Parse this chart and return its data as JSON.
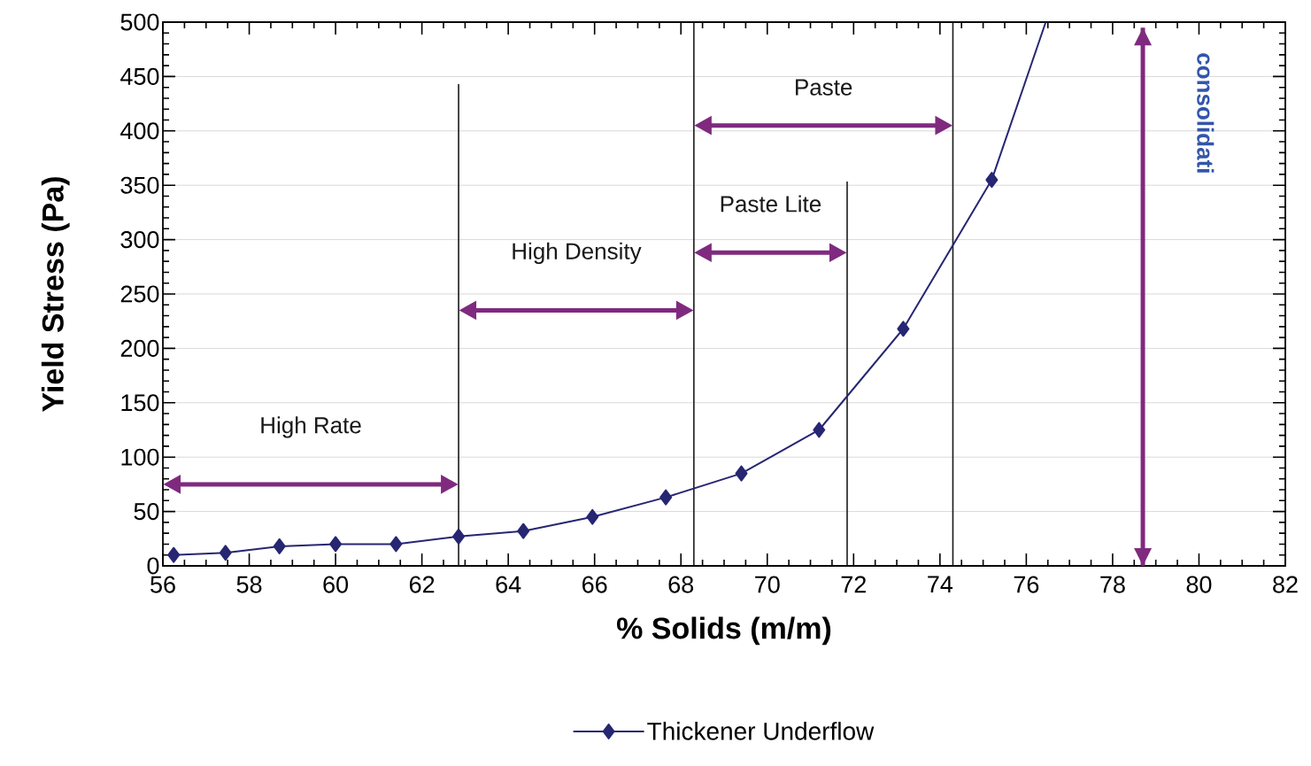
{
  "chart_data": {
    "type": "line",
    "xlabel": "% Solids (m/m)",
    "ylabel": "Yield Stress (Pa)",
    "xlim": [
      56,
      82
    ],
    "xticks": [
      56,
      58,
      60,
      62,
      64,
      66,
      68,
      70,
      72,
      74,
      76,
      78,
      80,
      82
    ],
    "ylim": [
      0,
      500
    ],
    "yticks": [
      0,
      50,
      100,
      150,
      200,
      250,
      300,
      350,
      400,
      450,
      500
    ],
    "grid": "y",
    "legend": "bottom",
    "marker": "diamond",
    "line_style": "solid",
    "series": [
      {
        "name": "Thickener Underflow",
        "color": "#262673",
        "x": [
          56.25,
          57.45,
          58.7,
          60.0,
          61.4,
          62.85,
          64.35,
          65.95,
          67.65,
          69.4,
          71.2,
          73.15,
          75.2
        ],
        "values": [
          10,
          12,
          18,
          20,
          20,
          27,
          32,
          45,
          63,
          85,
          125,
          218,
          355
        ]
      },
      {
        "color": "#262673",
        "marker": "none",
        "x": [
          75.2,
          76.45
        ],
        "values": [
          355,
          500
        ]
      }
    ],
    "ref_lines": [
      {
        "axis": "x",
        "value": 62.85,
        "color": "#1a1a1a"
      },
      {
        "axis": "x",
        "value": 68.3,
        "color": "#1a1a1a"
      },
      {
        "axis": "x",
        "value": 71.85,
        "color": "#1a1a1a"
      },
      {
        "axis": "x",
        "value": 74.3,
        "color": "#1a1a1a"
      },
      {
        "axis": "x",
        "value": 78.7,
        "color": "#7f2a7f"
      }
    ],
    "annotations": [
      "High Rate",
      "High Density",
      "Paste Lite",
      "Paste",
      "consolidati"
    ]
  }
}
